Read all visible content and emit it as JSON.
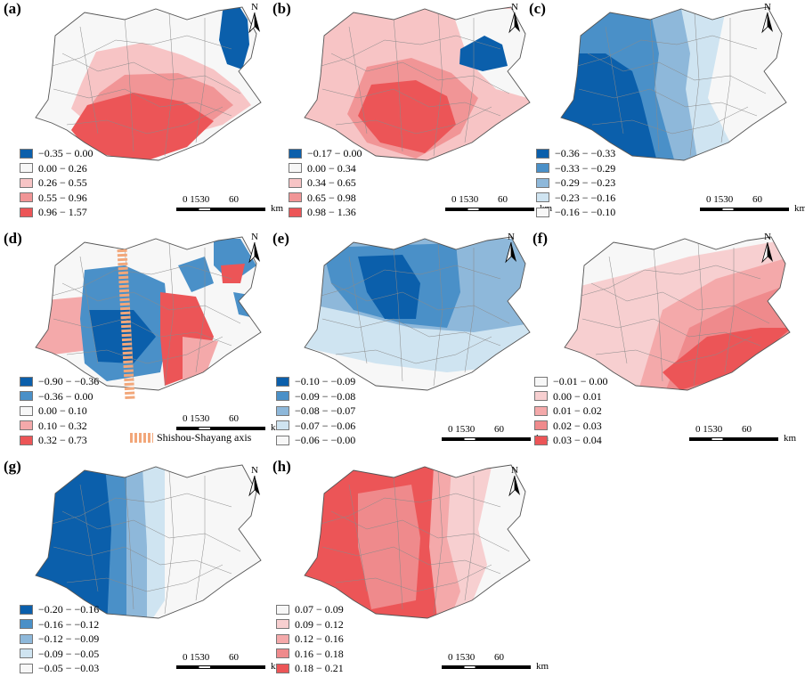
{
  "north_label": "N",
  "scale": {
    "ticks": "0 1530",
    "end": "60",
    "unit": "km"
  },
  "axis_legend": {
    "label": "Shishou-Shayang axis",
    "color": "#f2a77a"
  },
  "colors": {
    "dark_blue": "#0b5fab",
    "mid_blue": "#4a90c8",
    "light_blue": "#8eb8da",
    "pale_blue": "#cfe4f1",
    "white": "#f7f7f7",
    "pale_red": "#f7cfd0",
    "light_red": "#f4a9aa",
    "mid_red": "#ef8a8c",
    "red": "#ec5557"
  },
  "panels": [
    {
      "letter": "(a)",
      "legend": [
        "−0.35 − 0.00",
        "0.00 − 0.26",
        "0.26 − 0.55",
        "0.55 − 0.96",
        "0.96 − 1.57"
      ],
      "colors": [
        "#0b5fab",
        "#f7f7f7",
        "#f7c4c5",
        "#f19596",
        "#ec5557"
      ]
    },
    {
      "letter": "(b)",
      "legend": [
        "−0.17 − 0.00",
        "0.00 − 0.34",
        "0.34 − 0.65",
        "0.65 − 0.98",
        "0.98 − 1.36"
      ],
      "colors": [
        "#0b5fab",
        "#f7f7f7",
        "#f7c4c5",
        "#f19596",
        "#ec5557"
      ]
    },
    {
      "letter": "(c)",
      "legend": [
        "−0.36 − −0.33",
        "−0.33 − −0.29",
        "−0.29 − −0.23",
        "−0.23 − −0.16",
        "−0.16 − −0.10"
      ],
      "colors": [
        "#0b5fab",
        "#4a90c8",
        "#8eb8da",
        "#cfe4f1",
        "#f7f7f7"
      ]
    },
    {
      "letter": "(d)",
      "legend": [
        "−0.90 − −0.36",
        "−0.36 − 0.00",
        "0.00 − 0.10",
        "0.10 − 0.32",
        "0.32 − 0.73"
      ],
      "colors": [
        "#0b5fab",
        "#4a90c8",
        "#f7f7f7",
        "#f4a9aa",
        "#ec5557"
      ]
    },
    {
      "letter": "(e)",
      "legend": [
        "−0.10 − −0.09",
        "−0.09 − −0.08",
        "−0.08 − −0.07",
        "−0.07 − −0.06",
        "−0.06 − −0.00"
      ],
      "colors": [
        "#0b5fab",
        "#4a90c8",
        "#8eb8da",
        "#cfe4f1",
        "#f7f7f7"
      ]
    },
    {
      "letter": "(f)",
      "legend": [
        "−0.01 − 0.00",
        "0.00 − 0.01",
        "0.01 − 0.02",
        "0.02 − 0.03",
        "0.03 − 0.04"
      ],
      "colors": [
        "#f7f7f7",
        "#f7cfd0",
        "#f4a9aa",
        "#ef8a8c",
        "#ec5557"
      ]
    },
    {
      "letter": "(g)",
      "legend": [
        "−0.20 − −0.16",
        "−0.16 − −0.12",
        "−0.12 − −0.09",
        "−0.09 − −0.05",
        "−0.05 − −0.03"
      ],
      "colors": [
        "#0b5fab",
        "#4a90c8",
        "#8eb8da",
        "#cfe4f1",
        "#f7f7f7"
      ]
    },
    {
      "letter": "(h)",
      "legend": [
        "0.07 − 0.09",
        "0.09 − 0.12",
        "0.12 − 0.16",
        "0.16 − 0.18",
        "0.18 − 0.21"
      ],
      "colors": [
        "#f7f7f7",
        "#f7cfd0",
        "#f4a9aa",
        "#ef8a8c",
        "#ec5557"
      ]
    }
  ]
}
